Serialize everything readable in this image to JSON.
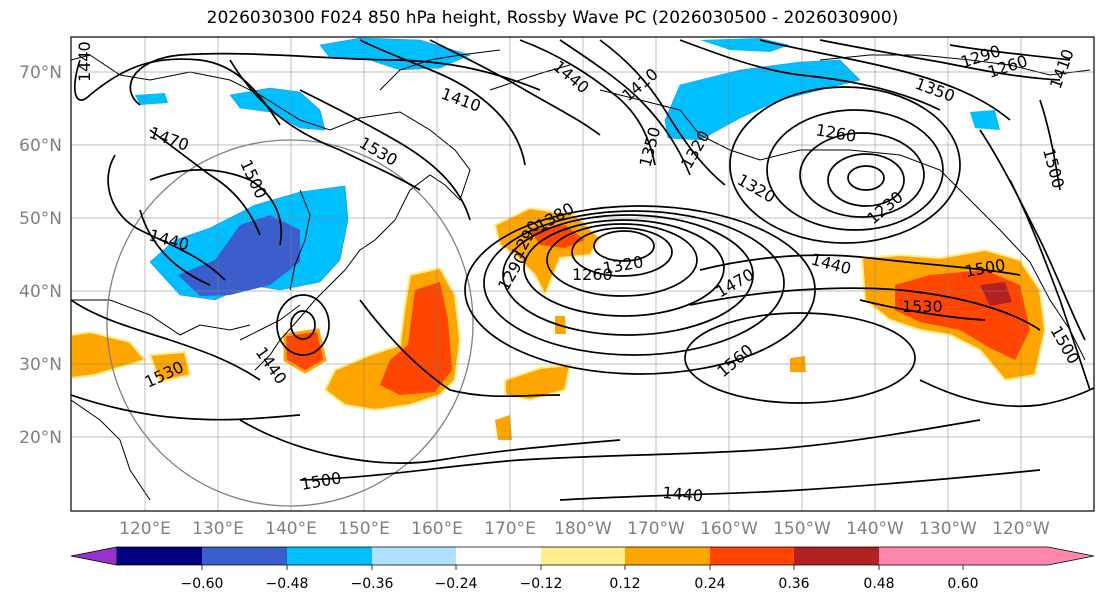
{
  "title": "2026030300 F024 850 hPa height, Rossby Wave PC (2026030500 - 2026030900)",
  "lat_labels": [
    "70°N",
    "60°N",
    "50°N",
    "40°N",
    "30°N",
    "20°N"
  ],
  "lon_labels": [
    "120°E",
    "130°E",
    "140°E",
    "150°E",
    "160°E",
    "170°E",
    "180°W",
    "170°W",
    "160°W",
    "150°W",
    "140°W",
    "130°W",
    "120°W"
  ],
  "colorbar": {
    "colors": [
      "#9932CC",
      "#000080",
      "#3A5FCD",
      "#00BFFF",
      "#B0E2FF",
      "#FFFFFF",
      "#FFEC8B",
      "#FFA500",
      "#FF4500",
      "#B22222",
      "#FF88AA"
    ],
    "tick_labels": [
      "−0.60",
      "−0.48",
      "−0.36",
      "−0.24",
      "−0.12",
      "0.12",
      "0.24",
      "0.36",
      "0.48",
      "0.60"
    ]
  },
  "contour_labels": [
    "1440",
    "1410",
    "1440",
    "1350",
    "1290",
    "1260",
    "1470",
    "1530",
    "1500",
    "1440",
    "1410",
    "1350",
    "1320",
    "1380",
    "1260",
    "1290",
    "1290",
    "1320",
    "1320",
    "1260",
    "1230",
    "1470",
    "1440",
    "1560",
    "1440",
    "1530",
    "1500",
    "1410",
    "1500",
    "1530",
    "1500",
    "1500",
    "1440"
  ]
}
